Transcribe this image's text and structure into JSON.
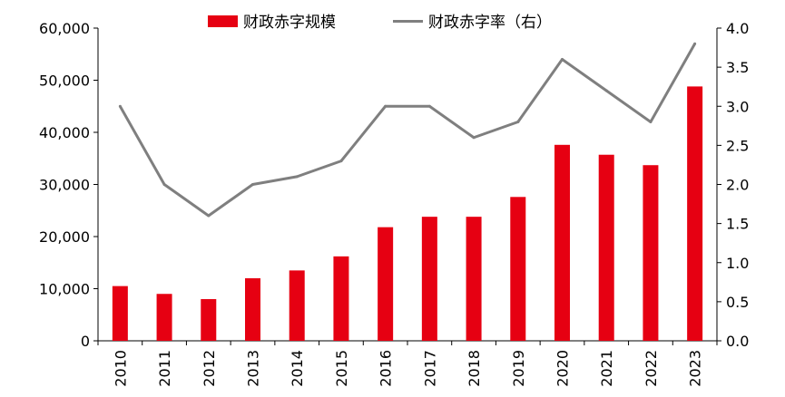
{
  "chart_data": {
    "type": "bar+line",
    "categories": [
      "2010",
      "2011",
      "2012",
      "2013",
      "2014",
      "2015",
      "2016",
      "2017",
      "2018",
      "2019",
      "2020",
      "2021",
      "2022",
      "2023"
    ],
    "series": [
      {
        "name": "财政赤字规模",
        "type": "bar",
        "axis": "left",
        "color": "#e60012",
        "values": [
          10500,
          9000,
          8000,
          12000,
          13500,
          16200,
          21800,
          23800,
          23800,
          27600,
          37600,
          35700,
          33700,
          48800
        ]
      },
      {
        "name": "财政赤字率（右）",
        "type": "line",
        "axis": "right",
        "color": "#7f7f7f",
        "values": [
          3.0,
          2.0,
          1.6,
          2.0,
          2.1,
          2.3,
          3.0,
          3.0,
          2.6,
          2.8,
          3.6,
          3.2,
          2.8,
          3.8
        ]
      }
    ],
    "y_left": {
      "ylim": [
        0,
        60000
      ],
      "ticks": [
        0,
        10000,
        20000,
        30000,
        40000,
        50000,
        60000
      ],
      "tick_labels": [
        "0",
        "10,000",
        "20,000",
        "30,000",
        "40,000",
        "50,000",
        "60,000"
      ]
    },
    "y_right": {
      "ylim": [
        0,
        4.0
      ],
      "ticks": [
        0,
        0.5,
        1.0,
        1.5,
        2.0,
        2.5,
        3.0,
        3.5,
        4.0
      ],
      "tick_labels": [
        "0.0",
        "0.5",
        "1.0",
        "1.5",
        "2.0",
        "2.5",
        "3.0",
        "3.5",
        "4.0"
      ]
    },
    "grid": false,
    "legend_position": "top-center",
    "xtick_rotation": "vertical"
  }
}
